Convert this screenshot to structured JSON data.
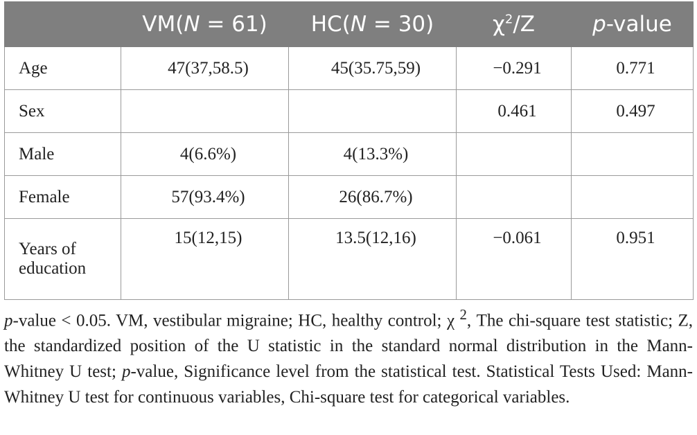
{
  "table": {
    "headers": {
      "col0": "",
      "vm_a": "VM(",
      "vm_n": "N",
      "vm_b": " = 61)",
      "hc_a": "HC(",
      "hc_n": "N",
      "hc_b": " = 30)",
      "stat_a": "χ",
      "stat_sup": "2",
      "stat_b": "/Z",
      "p_a": "p",
      "p_b": "-value"
    },
    "rows": [
      {
        "label": "Age",
        "vm": "47(37,58.5)",
        "hc": "45(35.75,59)",
        "stat": "−0.291",
        "p": "0.771"
      },
      {
        "label": "Sex",
        "vm": "",
        "hc": "",
        "stat": "0.461",
        "p": "0.497"
      },
      {
        "label": "Male",
        "vm": "4(6.6%)",
        "hc": "4(13.3%)",
        "stat": "",
        "p": ""
      },
      {
        "label": "Female",
        "vm": "57(93.4%)",
        "hc": "26(86.7%)",
        "stat": "",
        "p": ""
      },
      {
        "label": "Years of education",
        "vm": "15(12,15)",
        "hc": "13.5(12,16)",
        "stat": "−0.061",
        "p": "0.951"
      }
    ]
  },
  "footnote": {
    "p_italic": "p",
    "part1": "-value < 0.05. VM, vestibular migraine; HC, healthy control; χ ",
    "sup": "2",
    "part2": ", The chi-square test statistic; Z, the standardized position of the U statistic in the standard normal distribution in the Mann-Whitney U test; ",
    "p_italic2": "p",
    "part3": "-value, Significance level from the statistical test. Statistical Tests Used: Mann-Whitney U test for continuous variables, Chi-square test for categorical variables."
  }
}
